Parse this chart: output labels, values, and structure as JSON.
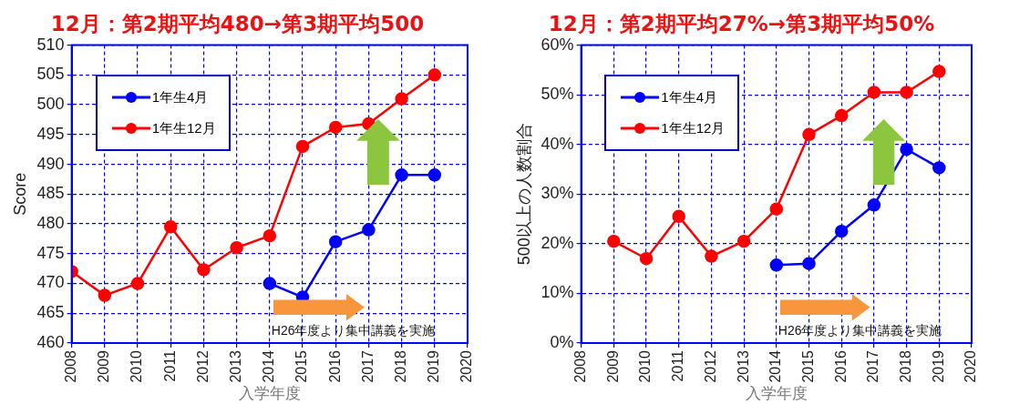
{
  "chart_data": [
    {
      "type": "line",
      "title": "12月：第2期平均480→第3期平均500",
      "xlabel": "入学年度",
      "ylabel": "Score",
      "xlim": [
        2008,
        2020
      ],
      "xticks": [
        2008,
        2009,
        2010,
        2011,
        2012,
        2013,
        2014,
        2015,
        2016,
        2017,
        2018,
        2019,
        2020
      ],
      "ylim": [
        460,
        510
      ],
      "yticks": [
        460,
        465,
        470,
        475,
        480,
        485,
        490,
        495,
        500,
        505,
        510
      ],
      "grid": true,
      "legend": "top left",
      "marker": "circle",
      "line_style": "solid",
      "annotations": [
        "H26年度より集中講義を実施"
      ],
      "series": [
        {
          "name": "1年生4月",
          "color": "#0000ff",
          "x": [
            2014,
            2015,
            2016,
            2017,
            2018,
            2019
          ],
          "values": [
            470,
            467.7,
            477,
            479,
            488.2,
            488.2
          ]
        },
        {
          "name": "1年生12月",
          "color": "#ff0000",
          "x": [
            2008,
            2009,
            2010,
            2011,
            2012,
            2013,
            2014,
            2015,
            2016,
            2017,
            2018,
            2019
          ],
          "values": [
            472,
            468,
            470,
            479.5,
            472.3,
            476,
            478,
            493,
            496.2,
            496.8,
            501,
            505
          ]
        }
      ]
    },
    {
      "type": "line",
      "title": "12月：第2期平均27%→第3期平均50%",
      "xlabel": "入学年度",
      "ylabel": "500以上の人数割合",
      "xlim": [
        2008,
        2020
      ],
      "xticks": [
        2008,
        2009,
        2010,
        2011,
        2012,
        2013,
        2014,
        2015,
        2016,
        2017,
        2018,
        2019,
        2020
      ],
      "ylim": [
        0,
        60
      ],
      "yticks": [
        {
          "value": 0,
          "label": "0%"
        },
        {
          "value": 10,
          "label": "10%"
        },
        {
          "value": 20,
          "label": "20%"
        },
        {
          "value": 30,
          "label": "30%"
        },
        {
          "value": 40,
          "label": "40%"
        },
        {
          "value": 50,
          "label": "50%"
        },
        {
          "value": 60,
          "label": "60%"
        }
      ],
      "grid": true,
      "legend": "top left",
      "marker": "circle",
      "line_style": "solid",
      "annotations": [
        "H26年度より集中講義を実施"
      ],
      "series": [
        {
          "name": "1年生4月",
          "color": "#0000ff",
          "x": [
            2014,
            2015,
            2016,
            2017,
            2018,
            2019
          ],
          "values": [
            15.7,
            16,
            22.5,
            27.8,
            39,
            35.3
          ]
        },
        {
          "name": "1年生12月",
          "color": "#ff0000",
          "x": [
            2009,
            2010,
            2011,
            2012,
            2013,
            2014,
            2015,
            2016,
            2017,
            2018,
            2019
          ],
          "values": [
            20.5,
            17,
            25.5,
            17.5,
            20.5,
            27,
            42,
            45.8,
            50.5,
            50.5,
            54.7
          ]
        }
      ]
    }
  ]
}
